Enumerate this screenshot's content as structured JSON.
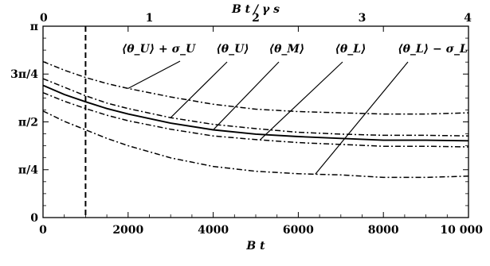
{
  "chart_data": {
    "type": "line",
    "title": "",
    "xlabel": "B t",
    "x2label": "B t / γ s",
    "ylabel": "",
    "xlim": [
      0,
      10000
    ],
    "ylim": [
      0,
      3.14159
    ],
    "x_ticks": [
      "0",
      "2000",
      "4000",
      "6000",
      "8000",
      "10 000"
    ],
    "x_tick_values": [
      0,
      2000,
      4000,
      6000,
      8000,
      10000
    ],
    "x2_ticks": [
      "0",
      "1",
      "2",
      "3",
      "4"
    ],
    "x2_tick_values": [
      0,
      2500,
      5000,
      7500,
      10000
    ],
    "y_ticks": [
      "0",
      "π/4",
      "π/2",
      "3π/4",
      "π"
    ],
    "y_tick_values": [
      0,
      0.7854,
      1.5708,
      2.3562,
      3.1416
    ],
    "vertical_line_x": 1000,
    "grid": false,
    "x": [
      0,
      500,
      1000,
      1500,
      2000,
      3000,
      4000,
      5000,
      6000,
      7000,
      8000,
      9000,
      10000
    ],
    "series": [
      {
        "label": "⟨θ_U⟩ + σ_U",
        "style": "dashdot",
        "values": [
          2.56,
          2.42,
          2.3,
          2.2,
          2.12,
          1.98,
          1.86,
          1.78,
          1.74,
          1.72,
          1.7,
          1.7,
          1.72
        ]
      },
      {
        "label": "⟨θ_U⟩",
        "style": "dashdot",
        "values": [
          2.28,
          2.14,
          2.0,
          1.88,
          1.79,
          1.64,
          1.53,
          1.46,
          1.4,
          1.37,
          1.35,
          1.35,
          1.34
        ]
      },
      {
        "label": "⟨θ_M⟩",
        "style": "solid",
        "values": [
          2.17,
          2.02,
          1.9,
          1.79,
          1.7,
          1.55,
          1.44,
          1.37,
          1.33,
          1.3,
          1.27,
          1.27,
          1.26
        ]
      },
      {
        "label": "⟨θ_L⟩",
        "style": "dashdot",
        "values": [
          2.05,
          1.91,
          1.79,
          1.68,
          1.59,
          1.45,
          1.34,
          1.28,
          1.23,
          1.2,
          1.17,
          1.17,
          1.16
        ]
      },
      {
        "label": "⟨θ_L⟩ − σ_L",
        "style": "dashdot",
        "values": [
          1.75,
          1.58,
          1.44,
          1.3,
          1.18,
          0.98,
          0.84,
          0.76,
          0.72,
          0.7,
          0.66,
          0.66,
          0.68
        ]
      }
    ],
    "annotations": [
      {
        "text": "⟨θ_U⟩ + σ_U",
        "series": 0,
        "at_x": 2000
      },
      {
        "text": "⟨θ_U⟩",
        "series": 1,
        "at_x": 3000
      },
      {
        "text": "⟨θ_M⟩",
        "series": 2,
        "at_x": 4000
      },
      {
        "text": "⟨θ_L⟩",
        "series": 3,
        "at_x": 5100
      },
      {
        "text": "⟨θ_L⟩ − σ_L",
        "series": 4,
        "at_x": 6400
      }
    ]
  }
}
